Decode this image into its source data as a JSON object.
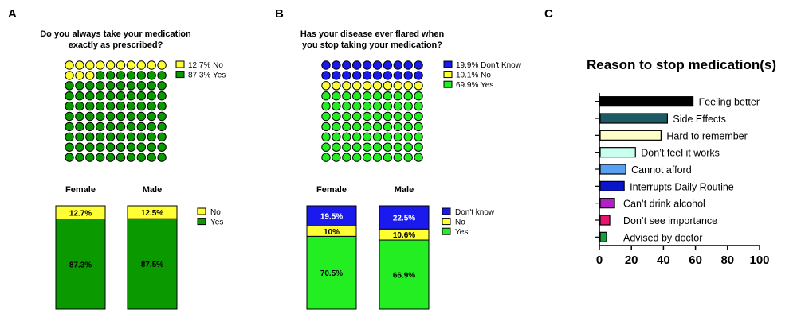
{
  "colors": {
    "yellow": "#ffff33",
    "dark_green": "#0a9a00",
    "bright_green": "#22ee22",
    "blue": "#1a1aee"
  },
  "chart_data": [
    {
      "panel": "A",
      "type": "waffle",
      "title": "Do you always take your medication exactly as prescribed?",
      "title_lines": [
        "Do you always take your medication",
        "exactly as prescribed?"
      ],
      "units_total": 100,
      "units": [
        {
          "category": "No",
          "value": 12.7,
          "dots": 13,
          "color": "#ffff33",
          "label": "12.7% No"
        },
        {
          "category": "Yes",
          "value": 87.3,
          "dots": 87,
          "color": "#0a9a00",
          "label": "87.3% Yes"
        }
      ]
    },
    {
      "panel": "A",
      "type": "bar",
      "stacked": true,
      "categories": [
        "Female",
        "Male"
      ],
      "series": [
        {
          "name": "Yes",
          "color": "#0a9a00",
          "values": [
            87.3,
            87.5
          ],
          "labels": [
            "87.3%",
            "87.5%"
          ]
        },
        {
          "name": "No",
          "color": "#ffff33",
          "values": [
            12.7,
            12.5
          ],
          "labels": [
            "12.7%",
            "12.5%"
          ]
        }
      ],
      "legend": [
        "No",
        "Yes"
      ],
      "ylim": [
        0,
        100
      ]
    },
    {
      "panel": "B",
      "type": "waffle",
      "title": "Has your disease ever flared when you stop taking your medication?",
      "title_lines": [
        "Has your disease ever flared when",
        "you stop taking your medication?"
      ],
      "units_total": 100,
      "units": [
        {
          "category": "Don't Know",
          "value": 19.9,
          "dots": 20,
          "color": "#1a1aee",
          "label": "19.9%  Don't Know"
        },
        {
          "category": "No",
          "value": 10.1,
          "dots": 10,
          "color": "#ffff33",
          "label": "10.1%  No"
        },
        {
          "category": "Yes",
          "value": 69.9,
          "dots": 70,
          "color": "#22ee22",
          "label": "69.9%  Yes"
        }
      ]
    },
    {
      "panel": "B",
      "type": "bar",
      "stacked": true,
      "categories": [
        "Female",
        "Male"
      ],
      "series": [
        {
          "name": "Yes",
          "color": "#22ee22",
          "values": [
            70.5,
            66.9
          ],
          "labels": [
            "70.5%",
            "66.9%"
          ]
        },
        {
          "name": "No",
          "color": "#ffff33",
          "values": [
            10,
            10.6
          ],
          "labels": [
            "10%",
            "10.6%"
          ]
        },
        {
          "name": "Don't know",
          "color": "#1a1aee",
          "values": [
            19.5,
            22.5
          ],
          "labels": [
            "19.5%",
            "22.5%"
          ]
        }
      ],
      "legend": [
        "Don't know",
        "No",
        "Yes"
      ],
      "ylim": [
        0,
        100
      ]
    },
    {
      "panel": "C",
      "type": "bar",
      "orientation": "horizontal",
      "title": "Reason to stop medication(s)",
      "categories": [
        "Feeling better",
        "Side Effects",
        "Hard to remember",
        "Don’t feel it works",
        "Cannot afford",
        "Interrupts Daily Routine",
        "Can’t drink alcohol",
        "Don’t see importance",
        "Advised by doctor"
      ],
      "values": [
        58,
        42,
        38,
        22,
        16,
        15,
        9,
        6,
        4
      ],
      "colors": [
        "#000000",
        "#1e5a64",
        "#ffffc8",
        "#c8ffee",
        "#5aa0f0",
        "#0a14c8",
        "#b41ec8",
        "#e6146e",
        "#14a03c"
      ],
      "xlim": [
        0,
        100
      ],
      "xticks": [
        "0",
        "20",
        "40",
        "60",
        "80",
        "100"
      ]
    }
  ],
  "panel_letters": [
    "A",
    "B",
    "C"
  ]
}
